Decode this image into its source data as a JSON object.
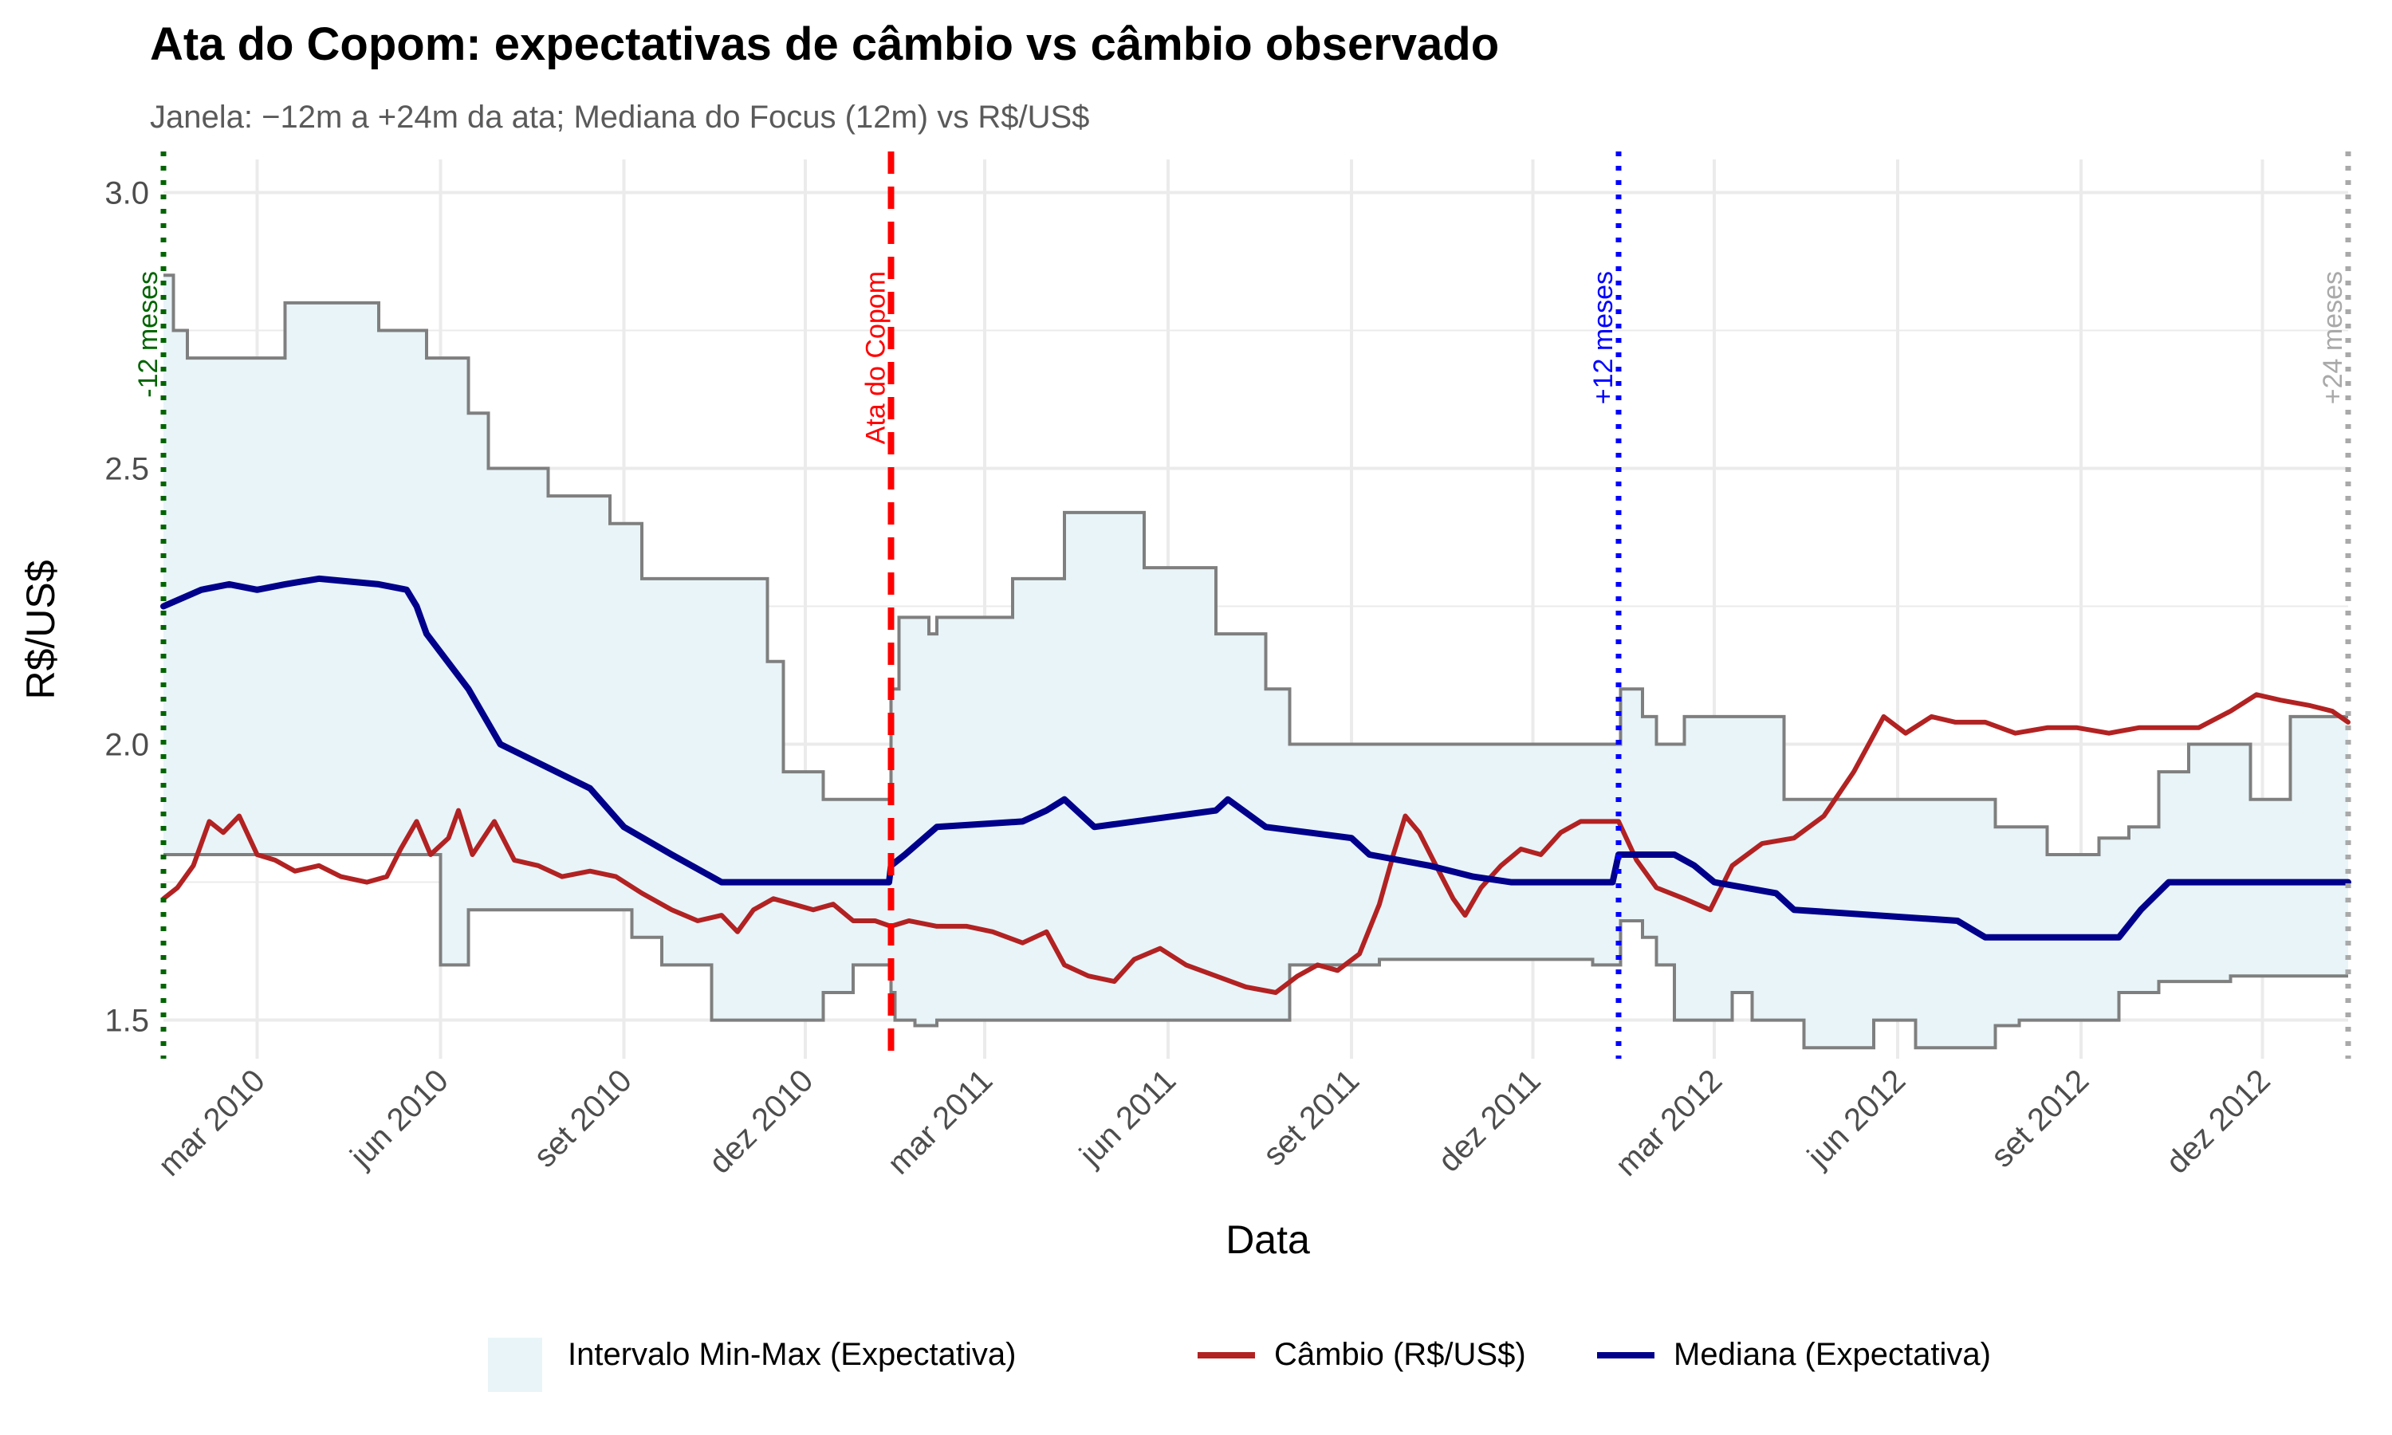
{
  "chart_data": {
    "type": "line",
    "title": "Ata do Copom: expectativas de câmbio vs câmbio observado",
    "subtitle": "Janela: −12m a +24m da ata; Mediana do Focus (12m) vs R$/US$",
    "xlabel": "Data",
    "ylabel": "R$/US$",
    "xlim": [
      "2010-01-13",
      "2013-01-13"
    ],
    "ylim": [
      1.43,
      3.06
    ],
    "y_ticks": [
      1.5,
      2.0,
      2.5,
      3.0
    ],
    "y_tick_labels": [
      "1.5",
      "2.0",
      "2.5",
      "3.0"
    ],
    "x_ticks": [
      {
        "date": "2010-03-01",
        "label": "mar 2010"
      },
      {
        "date": "2010-06-01",
        "label": "jun 2010"
      },
      {
        "date": "2010-09-01",
        "label": "set 2010"
      },
      {
        "date": "2010-12-01",
        "label": "dez 2010"
      },
      {
        "date": "2011-03-01",
        "label": "mar 2011"
      },
      {
        "date": "2011-06-01",
        "label": "jun 2011"
      },
      {
        "date": "2011-09-01",
        "label": "set 2011"
      },
      {
        "date": "2011-12-01",
        "label": "dez 2011"
      },
      {
        "date": "2012-03-01",
        "label": "mar 2012"
      },
      {
        "date": "2012-06-01",
        "label": "jun 2012"
      },
      {
        "date": "2012-09-01",
        "label": "set 2012"
      },
      {
        "date": "2012-12-01",
        "label": "dez 2012"
      }
    ],
    "grid": true,
    "legend_position": "bottom",
    "colors": {
      "ribbon_fill": "#e8f4f8",
      "ribbon_border": "#7f7f7f",
      "cambio": "#b22222",
      "mediana": "#00008b",
      "copom": "#ff0000",
      "minus12": "#006400",
      "plus12": "#0000ff",
      "plus24": "#a9a9a9",
      "grid": "#ebebeb"
    },
    "vlines": [
      {
        "date": "2010-01-13",
        "label": "-12 meses",
        "color": "#006400",
        "style": "dotted"
      },
      {
        "date": "2011-01-13",
        "label": "Ata do Copom",
        "color": "#ff0000",
        "style": "dashed"
      },
      {
        "date": "2012-01-13",
        "label": "+12 meses",
        "color": "#0000ff",
        "style": "dotted"
      },
      {
        "date": "2013-01-13",
        "label": "+24 meses",
        "color": "#a9a9a9",
        "style": "dotted"
      }
    ],
    "ribbon": {
      "name": "Intervalo Min-Max (Expectativa)",
      "max": [
        [
          "2010-01-13",
          2.85
        ],
        [
          "2010-01-18",
          2.75
        ],
        [
          "2010-01-25",
          2.7
        ],
        [
          "2010-03-15",
          2.8
        ],
        [
          "2010-05-01",
          2.75
        ],
        [
          "2010-05-25",
          2.7
        ],
        [
          "2010-06-15",
          2.6
        ],
        [
          "2010-06-25",
          2.5
        ],
        [
          "2010-07-25",
          2.45
        ],
        [
          "2010-08-25",
          2.4
        ],
        [
          "2010-09-10",
          2.3
        ],
        [
          "2010-11-12",
          2.15
        ],
        [
          "2010-11-20",
          1.95
        ],
        [
          "2010-12-10",
          1.9
        ],
        [
          "2011-01-10",
          1.9
        ],
        [
          "2011-01-13",
          2.1
        ],
        [
          "2011-01-17",
          2.23
        ],
        [
          "2011-02-01",
          2.2
        ],
        [
          "2011-02-05",
          2.23
        ],
        [
          "2011-03-15",
          2.3
        ],
        [
          "2011-04-10",
          2.42
        ],
        [
          "2011-05-20",
          2.32
        ],
        [
          "2011-06-25",
          2.2
        ],
        [
          "2011-07-20",
          2.1
        ],
        [
          "2011-08-01",
          2.0
        ],
        [
          "2012-01-13",
          2.0
        ],
        [
          "2012-01-14",
          2.1
        ],
        [
          "2012-01-25",
          2.05
        ],
        [
          "2012-02-01",
          2.0
        ],
        [
          "2012-02-15",
          2.05
        ],
        [
          "2012-04-05",
          1.9
        ],
        [
          "2012-07-20",
          1.85
        ],
        [
          "2012-08-15",
          1.8
        ],
        [
          "2012-09-10",
          1.83
        ],
        [
          "2012-09-25",
          1.85
        ],
        [
          "2012-10-10",
          1.95
        ],
        [
          "2012-10-25",
          2.0
        ],
        [
          "2012-11-25",
          1.9
        ],
        [
          "2012-12-15",
          2.05
        ],
        [
          "2013-01-13",
          2.05
        ]
      ],
      "min": [
        [
          "2010-01-13",
          1.8
        ],
        [
          "2010-05-30",
          1.8
        ],
        [
          "2010-06-01",
          1.6
        ],
        [
          "2010-06-15",
          1.7
        ],
        [
          "2010-09-01",
          1.7
        ],
        [
          "2010-09-05",
          1.65
        ],
        [
          "2010-09-20",
          1.6
        ],
        [
          "2010-10-15",
          1.5
        ],
        [
          "2010-12-01",
          1.5
        ],
        [
          "2010-12-10",
          1.55
        ],
        [
          "2010-12-25",
          1.6
        ],
        [
          "2011-01-13",
          1.55
        ],
        [
          "2011-01-15",
          1.5
        ],
        [
          "2011-01-25",
          1.49
        ],
        [
          "2011-02-05",
          1.5
        ],
        [
          "2011-08-01",
          1.6
        ],
        [
          "2011-09-15",
          1.61
        ],
        [
          "2011-12-31",
          1.6
        ],
        [
          "2012-01-13",
          1.6
        ],
        [
          "2012-01-14",
          1.68
        ],
        [
          "2012-01-25",
          1.65
        ],
        [
          "2012-02-01",
          1.6
        ],
        [
          "2012-02-10",
          1.5
        ],
        [
          "2012-03-10",
          1.55
        ],
        [
          "2012-03-20",
          1.5
        ],
        [
          "2012-04-15",
          1.45
        ],
        [
          "2012-05-20",
          1.5
        ],
        [
          "2012-06-10",
          1.45
        ],
        [
          "2012-07-20",
          1.49
        ],
        [
          "2012-08-01",
          1.5
        ],
        [
          "2012-09-20",
          1.55
        ],
        [
          "2012-10-10",
          1.57
        ],
        [
          "2012-11-15",
          1.58
        ],
        [
          "2013-01-13",
          1.58
        ]
      ]
    },
    "series": [
      {
        "name": "Câmbio (R$/US$)",
        "color": "#b22222",
        "points": [
          [
            "2010-01-13",
            1.72
          ],
          [
            "2010-01-20",
            1.74
          ],
          [
            "2010-01-28",
            1.78
          ],
          [
            "2010-02-05",
            1.86
          ],
          [
            "2010-02-12",
            1.84
          ],
          [
            "2010-02-20",
            1.87
          ],
          [
            "2010-03-01",
            1.8
          ],
          [
            "2010-03-10",
            1.79
          ],
          [
            "2010-03-20",
            1.77
          ],
          [
            "2010-04-01",
            1.78
          ],
          [
            "2010-04-12",
            1.76
          ],
          [
            "2010-04-25",
            1.75
          ],
          [
            "2010-05-05",
            1.76
          ],
          [
            "2010-05-12",
            1.81
          ],
          [
            "2010-05-20",
            1.86
          ],
          [
            "2010-05-27",
            1.8
          ],
          [
            "2010-06-05",
            1.83
          ],
          [
            "2010-06-10",
            1.88
          ],
          [
            "2010-06-17",
            1.8
          ],
          [
            "2010-06-28",
            1.86
          ],
          [
            "2010-07-08",
            1.79
          ],
          [
            "2010-07-20",
            1.78
          ],
          [
            "2010-08-01",
            1.76
          ],
          [
            "2010-08-15",
            1.77
          ],
          [
            "2010-08-28",
            1.76
          ],
          [
            "2010-09-10",
            1.73
          ],
          [
            "2010-09-25",
            1.7
          ],
          [
            "2010-10-08",
            1.68
          ],
          [
            "2010-10-20",
            1.69
          ],
          [
            "2010-10-28",
            1.66
          ],
          [
            "2010-11-05",
            1.7
          ],
          [
            "2010-11-15",
            1.72
          ],
          [
            "2010-11-25",
            1.71
          ],
          [
            "2010-12-05",
            1.7
          ],
          [
            "2010-12-15",
            1.71
          ],
          [
            "2010-12-25",
            1.68
          ],
          [
            "2011-01-05",
            1.68
          ],
          [
            "2011-01-13",
            1.67
          ],
          [
            "2011-01-22",
            1.68
          ],
          [
            "2011-02-05",
            1.67
          ],
          [
            "2011-02-20",
            1.67
          ],
          [
            "2011-03-05",
            1.66
          ],
          [
            "2011-03-20",
            1.64
          ],
          [
            "2011-04-01",
            1.66
          ],
          [
            "2011-04-10",
            1.6
          ],
          [
            "2011-04-22",
            1.58
          ],
          [
            "2011-05-05",
            1.57
          ],
          [
            "2011-05-15",
            1.61
          ],
          [
            "2011-05-28",
            1.63
          ],
          [
            "2011-06-10",
            1.6
          ],
          [
            "2011-06-25",
            1.58
          ],
          [
            "2011-07-10",
            1.56
          ],
          [
            "2011-07-25",
            1.55
          ],
          [
            "2011-08-05",
            1.58
          ],
          [
            "2011-08-15",
            1.6
          ],
          [
            "2011-08-25",
            1.59
          ],
          [
            "2011-09-05",
            1.62
          ],
          [
            "2011-09-15",
            1.71
          ],
          [
            "2011-09-22",
            1.8
          ],
          [
            "2011-09-28",
            1.87
          ],
          [
            "2011-10-05",
            1.84
          ],
          [
            "2011-10-12",
            1.79
          ],
          [
            "2011-10-22",
            1.72
          ],
          [
            "2011-10-28",
            1.69
          ],
          [
            "2011-11-05",
            1.74
          ],
          [
            "2011-11-15",
            1.78
          ],
          [
            "2011-11-25",
            1.81
          ],
          [
            "2011-12-05",
            1.8
          ],
          [
            "2011-12-15",
            1.84
          ],
          [
            "2011-12-25",
            1.86
          ],
          [
            "2012-01-05",
            1.86
          ],
          [
            "2012-01-13",
            1.86
          ],
          [
            "2012-01-22",
            1.79
          ],
          [
            "2012-02-01",
            1.74
          ],
          [
            "2012-02-15",
            1.72
          ],
          [
            "2012-02-28",
            1.7
          ],
          [
            "2012-03-10",
            1.78
          ],
          [
            "2012-03-25",
            1.82
          ],
          [
            "2012-04-10",
            1.83
          ],
          [
            "2012-04-25",
            1.87
          ],
          [
            "2012-05-10",
            1.95
          ],
          [
            "2012-05-25",
            2.05
          ],
          [
            "2012-06-05",
            2.02
          ],
          [
            "2012-06-18",
            2.05
          ],
          [
            "2012-06-30",
            2.04
          ],
          [
            "2012-07-15",
            2.04
          ],
          [
            "2012-07-30",
            2.02
          ],
          [
            "2012-08-15",
            2.03
          ],
          [
            "2012-08-30",
            2.03
          ],
          [
            "2012-09-15",
            2.02
          ],
          [
            "2012-09-30",
            2.03
          ],
          [
            "2012-10-15",
            2.03
          ],
          [
            "2012-10-30",
            2.03
          ],
          [
            "2012-11-15",
            2.06
          ],
          [
            "2012-11-28",
            2.09
          ],
          [
            "2012-12-10",
            2.08
          ],
          [
            "2012-12-25",
            2.07
          ],
          [
            "2013-01-05",
            2.06
          ],
          [
            "2013-01-13",
            2.04
          ]
        ]
      },
      {
        "name": "Mediana (Expectativa)",
        "color": "#00008b",
        "points": [
          [
            "2010-01-13",
            2.25
          ],
          [
            "2010-02-01",
            2.28
          ],
          [
            "2010-02-15",
            2.29
          ],
          [
            "2010-03-01",
            2.28
          ],
          [
            "2010-03-15",
            2.29
          ],
          [
            "2010-04-01",
            2.3
          ],
          [
            "2010-05-01",
            2.29
          ],
          [
            "2010-05-15",
            2.28
          ],
          [
            "2010-05-20",
            2.25
          ],
          [
            "2010-05-25",
            2.2
          ],
          [
            "2010-06-15",
            2.1
          ],
          [
            "2010-07-01",
            2.0
          ],
          [
            "2010-08-15",
            1.92
          ],
          [
            "2010-09-01",
            1.85
          ],
          [
            "2010-09-25",
            1.8
          ],
          [
            "2010-10-20",
            1.75
          ],
          [
            "2011-01-12",
            1.75
          ],
          [
            "2011-01-13",
            1.78
          ],
          [
            "2011-01-20",
            1.8
          ],
          [
            "2011-02-05",
            1.85
          ],
          [
            "2011-03-20",
            1.86
          ],
          [
            "2011-04-01",
            1.88
          ],
          [
            "2011-04-10",
            1.9
          ],
          [
            "2011-04-25",
            1.85
          ],
          [
            "2011-06-25",
            1.88
          ],
          [
            "2011-07-01",
            1.9
          ],
          [
            "2011-07-20",
            1.85
          ],
          [
            "2011-09-01",
            1.83
          ],
          [
            "2011-09-10",
            1.8
          ],
          [
            "2011-10-10",
            1.78
          ],
          [
            "2011-11-01",
            1.76
          ],
          [
            "2011-11-20",
            1.75
          ],
          [
            "2012-01-10",
            1.75
          ],
          [
            "2012-01-13",
            1.8
          ],
          [
            "2012-02-10",
            1.8
          ],
          [
            "2012-02-20",
            1.78
          ],
          [
            "2012-03-01",
            1.75
          ],
          [
            "2012-04-01",
            1.73
          ],
          [
            "2012-04-10",
            1.7
          ],
          [
            "2012-07-01",
            1.68
          ],
          [
            "2012-07-15",
            1.65
          ],
          [
            "2012-09-20",
            1.65
          ],
          [
            "2012-10-01",
            1.7
          ],
          [
            "2012-10-15",
            1.75
          ],
          [
            "2013-01-13",
            1.75
          ]
        ]
      }
    ],
    "legend": [
      {
        "label": "Intervalo Min-Max (Expectativa)",
        "kind": "fill"
      },
      {
        "label": "Câmbio (R$/US$)",
        "kind": "line"
      },
      {
        "label": "Mediana (Expectativa)",
        "kind": "line"
      }
    ]
  }
}
